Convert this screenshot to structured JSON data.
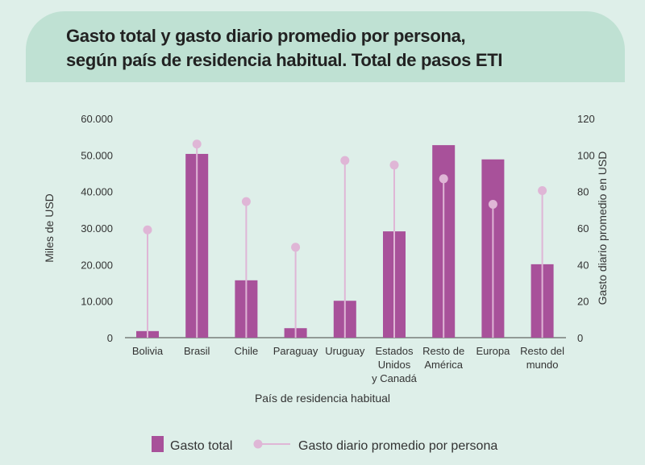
{
  "chart_data": {
    "type": "bar",
    "title": [
      "Gasto total y gasto diario promedio por persona,",
      "según país de residencia habitual. Total de pasos ETI"
    ],
    "xlabel": "País de residencia habitual",
    "ylabel": "Miles de USD",
    "y2label": "Gasto diario promedio en USD",
    "ylim": [
      0,
      60000
    ],
    "y2lim": [
      0,
      120
    ],
    "yticks": [
      "0",
      "10.000",
      "20.000",
      "30.000",
      "40.000",
      "50.000",
      "60.000"
    ],
    "y2ticks": [
      "0",
      "20",
      "40",
      "60",
      "80",
      "100",
      "120"
    ],
    "categories": [
      [
        "Bolivia"
      ],
      [
        "Brasil"
      ],
      [
        "Chile"
      ],
      [
        "Paraguay"
      ],
      [
        "Uruguay"
      ],
      [
        "Estados",
        "Unidos",
        "y Canadá"
      ],
      [
        "Resto de",
        "América"
      ],
      [
        "Europa"
      ],
      [
        "Resto del",
        "mundo"
      ]
    ],
    "series": [
      {
        "name": "Gasto total",
        "type": "bar",
        "axis": "left",
        "color": "#a8519a",
        "values": [
          1800,
          50300,
          15700,
          2600,
          10100,
          29100,
          52700,
          48800,
          20100
        ]
      },
      {
        "name": "Gasto diario promedio por persona",
        "type": "lollipop",
        "axis": "right",
        "color": "#dfb6d6",
        "values": [
          59,
          106,
          74.5,
          49.5,
          97,
          94.5,
          87,
          73,
          80.5
        ]
      }
    ],
    "legend": "bottom"
  }
}
